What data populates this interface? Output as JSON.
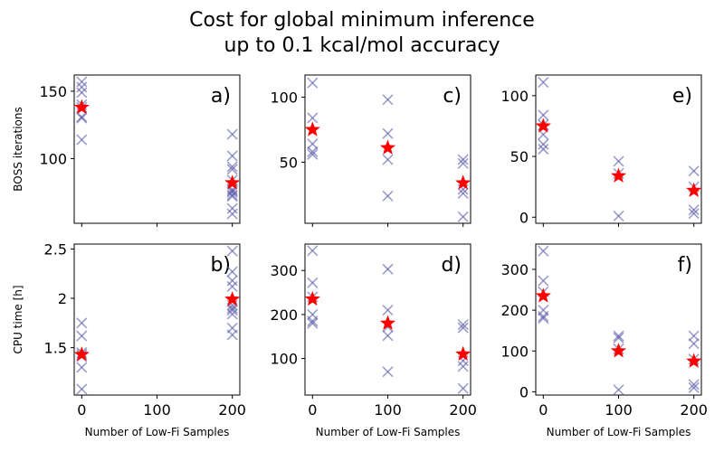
{
  "figure": {
    "title_line1": "Cost for global minimum inference",
    "title_line2": "up to 0.1 kcal/mol accuracy"
  },
  "colors": {
    "sample_marker": "#5a5aa8",
    "mean_marker": "#ff0000",
    "axes": "#000000"
  },
  "chart_data": [
    {
      "id": "a",
      "panel_label": "a)",
      "type": "scatter",
      "ylabel": "BOSS iterations",
      "xlabel": "",
      "xlim": [
        -10,
        210
      ],
      "ylim": [
        52,
        162
      ],
      "xticks": [
        0,
        100,
        200
      ],
      "show_xticklabels": false,
      "yticks": [
        100,
        150
      ],
      "samples": [
        {
          "x": 0,
          "ys": [
            157,
            153,
            149,
            140,
            138,
            131,
            130,
            114
          ]
        },
        {
          "x": 200,
          "ys": [
            118,
            102,
            94,
            92,
            84,
            77,
            76,
            75,
            73,
            72,
            63,
            59
          ]
        }
      ],
      "means": [
        {
          "x": 0,
          "y": 138
        },
        {
          "x": 200,
          "y": 82
        }
      ]
    },
    {
      "id": "c",
      "panel_label": "c)",
      "type": "scatter",
      "ylabel": "",
      "xlabel": "",
      "xlim": [
        -10,
        210
      ],
      "ylim": [
        3,
        117
      ],
      "xticks": [
        0,
        100,
        200
      ],
      "show_xticklabels": false,
      "yticks": [
        50,
        100
      ],
      "samples": [
        {
          "x": 0,
          "ys": [
            111,
            84,
            64,
            58,
            56
          ]
        },
        {
          "x": 100,
          "ys": [
            98,
            72,
            52,
            24
          ]
        },
        {
          "x": 200,
          "ys": [
            52,
            49,
            29,
            26,
            8
          ]
        }
      ],
      "means": [
        {
          "x": 0,
          "y": 75
        },
        {
          "x": 100,
          "y": 61
        },
        {
          "x": 200,
          "y": 34
        }
      ]
    },
    {
      "id": "e",
      "panel_label": "e)",
      "type": "scatter",
      "ylabel": "",
      "xlabel": "",
      "xlim": [
        -10,
        210
      ],
      "ylim": [
        -5,
        117
      ],
      "xticks": [
        0,
        100,
        200
      ],
      "show_xticklabels": false,
      "yticks": [
        0,
        50,
        100
      ],
      "samples": [
        {
          "x": 0,
          "ys": [
            111,
            84,
            76,
            68,
            60,
            56
          ]
        },
        {
          "x": 100,
          "ys": [
            46,
            36,
            1
          ]
        },
        {
          "x": 200,
          "ys": [
            38,
            25,
            6,
            3
          ]
        }
      ],
      "means": [
        {
          "x": 0,
          "y": 75
        },
        {
          "x": 100,
          "y": 34
        },
        {
          "x": 200,
          "y": 22
        }
      ]
    },
    {
      "id": "b",
      "panel_label": "b)",
      "type": "scatter",
      "ylabel": "CPU time [h]",
      "xlabel": "Number of Low-Fi Samples",
      "xlim": [
        -10,
        210
      ],
      "ylim": [
        1.02,
        2.55
      ],
      "xticks": [
        0,
        100,
        200
      ],
      "show_xticklabels": true,
      "yticks": [
        1.5,
        2.0,
        2.5
      ],
      "samples": [
        {
          "x": 0,
          "ys": [
            1.75,
            1.62,
            1.45,
            1.43,
            1.41,
            1.3,
            1.08
          ]
        },
        {
          "x": 200,
          "ys": [
            2.48,
            2.27,
            2.18,
            2.12,
            1.97,
            1.93,
            1.9,
            1.88,
            1.84,
            1.7,
            1.63
          ]
        }
      ],
      "means": [
        {
          "x": 0,
          "y": 1.43
        },
        {
          "x": 200,
          "y": 1.99
        }
      ]
    },
    {
      "id": "d",
      "panel_label": "d)",
      "type": "scatter",
      "ylabel": "",
      "xlabel": "Number of Low-Fi Samples",
      "xlim": [
        -10,
        210
      ],
      "ylim": [
        17,
        360
      ],
      "xticks": [
        0,
        100,
        200
      ],
      "show_xticklabels": true,
      "yticks": [
        100,
        200,
        300
      ],
      "samples": [
        {
          "x": 0,
          "ys": [
            345,
            272,
            240,
            200,
            185,
            180
          ]
        },
        {
          "x": 100,
          "ys": [
            303,
            210,
            172,
            152,
            70
          ]
        },
        {
          "x": 200,
          "ys": [
            177,
            170,
            95,
            82,
            32
          ]
        }
      ],
      "means": [
        {
          "x": 0,
          "y": 235
        },
        {
          "x": 100,
          "y": 180
        },
        {
          "x": 200,
          "y": 110
        }
      ]
    },
    {
      "id": "f",
      "panel_label": "f)",
      "type": "scatter",
      "ylabel": "",
      "xlabel": "Number of Low-Fi Samples",
      "xlim": [
        -10,
        210
      ],
      "ylim": [
        -8,
        362
      ],
      "xticks": [
        0,
        100,
        200
      ],
      "show_xticklabels": true,
      "yticks": [
        0,
        100,
        200,
        300
      ],
      "samples": [
        {
          "x": 0,
          "ys": [
            345,
            272,
            245,
            200,
            185,
            180
          ]
        },
        {
          "x": 100,
          "ys": [
            137,
            132,
            105,
            5
          ]
        },
        {
          "x": 200,
          "ys": [
            137,
            118,
            80,
            18,
            10
          ]
        }
      ],
      "means": [
        {
          "x": 0,
          "y": 235
        },
        {
          "x": 100,
          "y": 100
        },
        {
          "x": 200,
          "y": 75
        }
      ]
    }
  ]
}
